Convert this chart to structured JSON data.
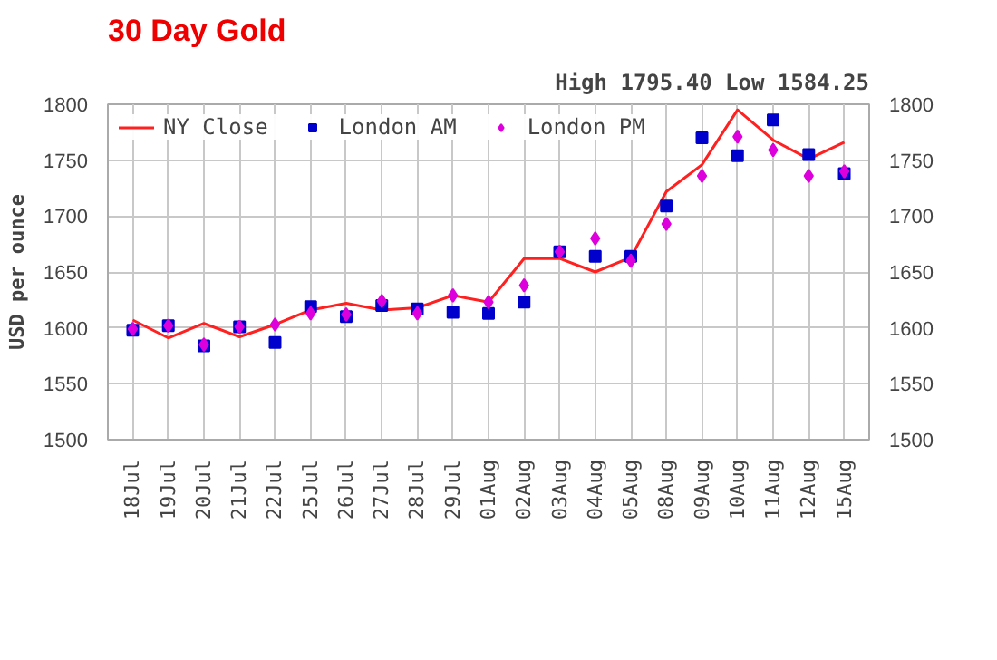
{
  "chart_data": {
    "type": "line",
    "title": "30 Day Gold",
    "subtitle": "High 1795.40 Low 1584.25",
    "ylabel": "USD per ounce",
    "categories": [
      "18Jul",
      "19Jul",
      "20Jul",
      "21Jul",
      "22Jul",
      "25Jul",
      "26Jul",
      "27Jul",
      "28Jul",
      "29Jul",
      "01Aug",
      "02Aug",
      "03Aug",
      "04Aug",
      "05Aug",
      "08Aug",
      "09Aug",
      "10Aug",
      "11Aug",
      "12Aug",
      "15Aug"
    ],
    "series": [
      {
        "name": "NY Close",
        "color": "#ff2020",
        "marker": "none",
        "values": [
          1607,
          1591,
          1604,
          1592,
          1603,
          1616,
          1622,
          1616,
          1618,
          1629,
          1623,
          1662,
          1662,
          1650,
          1663,
          1722,
          1746,
          1795,
          1768,
          1751,
          1766
        ]
      },
      {
        "name": "London AM",
        "type": "scatter",
        "color": "#0000cc",
        "marker": "square",
        "values": [
          1598,
          1602,
          1584,
          1601,
          1587,
          1619,
          1610,
          1620,
          1617,
          1614,
          1613,
          1623,
          1668,
          1664,
          1664,
          1709,
          1770,
          1754,
          1786,
          1755,
          1738
        ]
      },
      {
        "name": "London PM",
        "type": "scatter",
        "color": "#dd00dd",
        "marker": "diamond",
        "values": [
          1599,
          1602,
          1585,
          1601,
          1603,
          1613,
          1612,
          1624,
          1613,
          1629,
          1623,
          1638,
          1668,
          1680,
          1660,
          1693,
          1736,
          1771,
          1759,
          1736,
          1740
        ]
      }
    ],
    "ylim": [
      1500,
      1800
    ],
    "yticks": [
      1500,
      1550,
      1600,
      1650,
      1700,
      1750,
      1800
    ],
    "y2lim": [
      1500,
      1800
    ],
    "y2ticks": [
      1500,
      1550,
      1600,
      1650,
      1700,
      1750,
      1800
    ],
    "grid": true,
    "legend": "top left"
  }
}
